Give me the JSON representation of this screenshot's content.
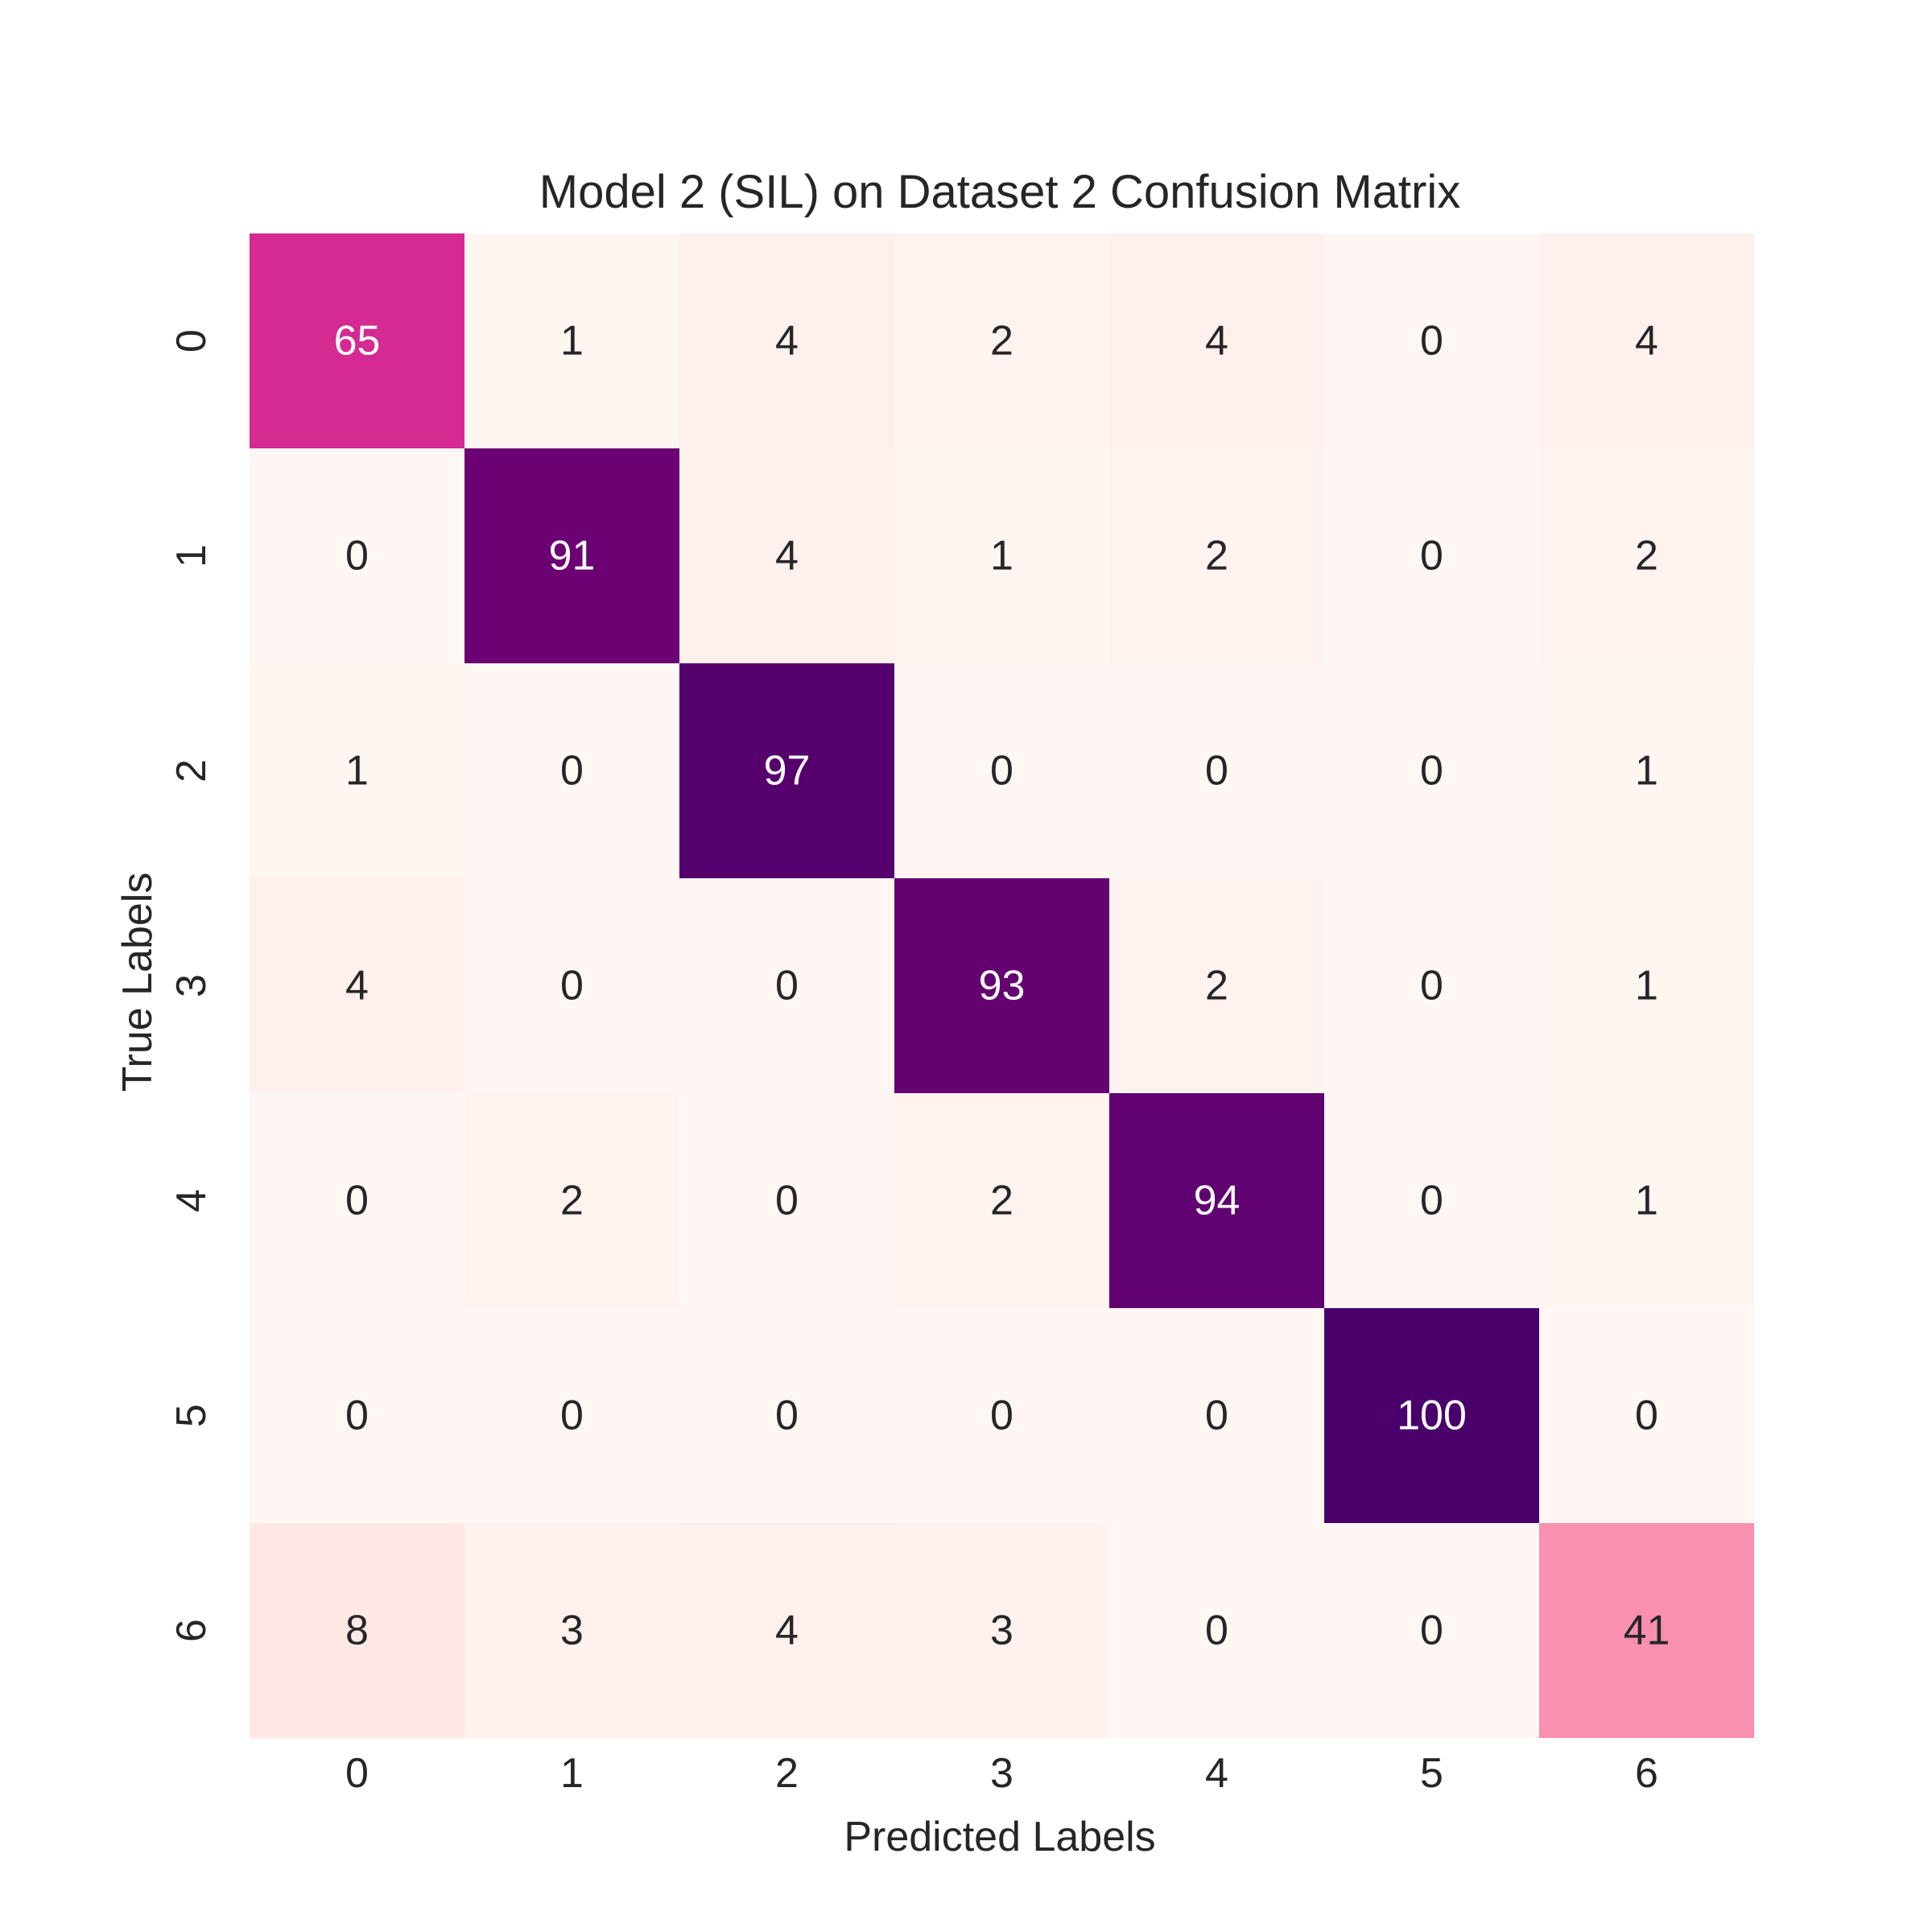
{
  "chart_data": {
    "type": "heatmap",
    "title": "Model 2 (SIL) on Dataset 2 Confusion Matrix",
    "xlabel": "Predicted Labels",
    "ylabel": "True Labels",
    "x_tick_labels": [
      "0",
      "1",
      "2",
      "3",
      "4",
      "5",
      "6"
    ],
    "y_tick_labels": [
      "0",
      "1",
      "2",
      "3",
      "4",
      "5",
      "6"
    ],
    "values": [
      [
        65,
        1,
        4,
        2,
        4,
        0,
        4
      ],
      [
        0,
        91,
        4,
        1,
        2,
        0,
        2
      ],
      [
        1,
        0,
        97,
        0,
        0,
        0,
        1
      ],
      [
        4,
        0,
        0,
        93,
        2,
        0,
        1
      ],
      [
        0,
        2,
        0,
        2,
        94,
        0,
        1
      ],
      [
        0,
        0,
        0,
        0,
        0,
        100,
        0
      ],
      [
        8,
        3,
        4,
        3,
        0,
        0,
        41
      ]
    ],
    "value_range": [
      0,
      100
    ],
    "colormap": "RdPu",
    "colormap_stops": [
      "#fff7f3",
      "#fde0dd",
      "#fcc5c0",
      "#fa9fb5",
      "#f768a1",
      "#dd3497",
      "#ae017e",
      "#7a0177",
      "#49006a"
    ],
    "annotation_color_dark": "#262626",
    "annotation_color_light": "#ffffff",
    "colorbar": false,
    "grid": false
  }
}
